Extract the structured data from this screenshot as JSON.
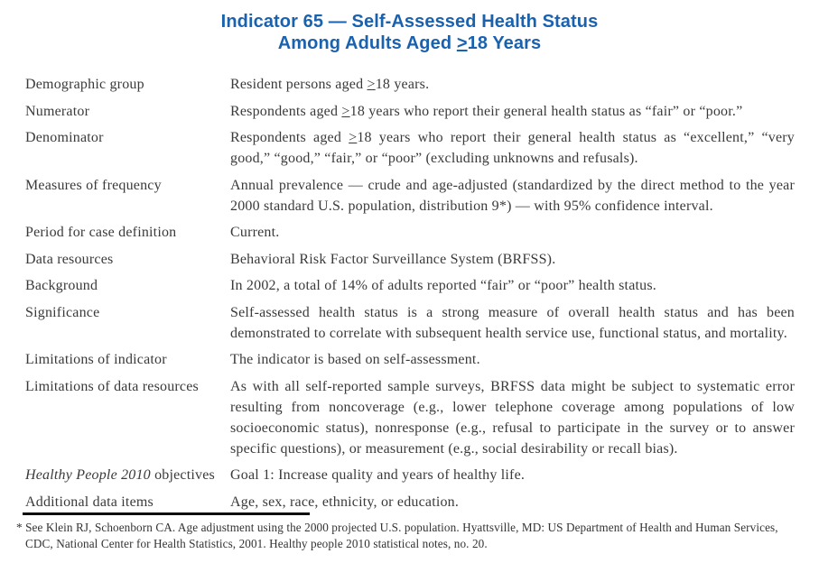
{
  "colors": {
    "title_blue": "#1b62ae",
    "body_text": "#3a3a3a",
    "rule_black": "#0d0d0d"
  },
  "title": {
    "line1": [
      {
        "t": "Indicator 65 — Self-Assessed Health Status"
      }
    ],
    "line2": [
      {
        "t": "Among Adults Aged "
      },
      {
        "t": ">",
        "u": true
      },
      {
        "t": "18 Years"
      }
    ]
  },
  "table": {
    "rows": [
      {
        "label": [
          {
            "t": "Demographic group"
          }
        ],
        "value": [
          {
            "t": "Resident persons aged "
          },
          {
            "t": ">",
            "u": true
          },
          {
            "t": "18 years."
          }
        ]
      },
      {
        "label": [
          {
            "t": "Numerator"
          }
        ],
        "value": [
          {
            "t": "Respondents aged "
          },
          {
            "t": ">",
            "u": true
          },
          {
            "t": "18 years who report their general health status as “fair” or “poor.”"
          }
        ]
      },
      {
        "label": [
          {
            "t": "Denominator"
          }
        ],
        "value": [
          {
            "t": "Respondents aged "
          },
          {
            "t": ">",
            "u": true
          },
          {
            "t": "18 years who report their general health status as “excellent,” “very good,” “good,” “fair,” or “poor” (excluding unknowns and refusals)."
          }
        ]
      },
      {
        "label": [
          {
            "t": "Measures of frequency"
          }
        ],
        "value": [
          {
            "t": "Annual prevalence — crude and age-adjusted (standardized by the direct method to the year 2000 standard U.S. population, distribution 9*) — with 95% confidence interval."
          }
        ]
      },
      {
        "label": [
          {
            "t": "Period for case definition"
          }
        ],
        "value": [
          {
            "t": "Current."
          }
        ]
      },
      {
        "label": [
          {
            "t": "Data resources"
          }
        ],
        "value": [
          {
            "t": "Behavioral Risk Factor Surveillance System (BRFSS)."
          }
        ]
      },
      {
        "label": [
          {
            "t": "Background"
          }
        ],
        "value": [
          {
            "t": "In 2002, a total of 14% of adults reported “fair” or “poor” health status."
          }
        ]
      },
      {
        "label": [
          {
            "t": "Significance"
          }
        ],
        "value": [
          {
            "t": "Self-assessed health status is a strong measure of overall health status and has been demonstrated to correlate with subsequent health service use, functional status, and mortality."
          }
        ]
      },
      {
        "label": [
          {
            "t": "Limitations of indicator"
          }
        ],
        "value": [
          {
            "t": "The indicator is based on self-assessment."
          }
        ]
      },
      {
        "label": [
          {
            "t": "Limitations of data resources"
          }
        ],
        "value": [
          {
            "t": "As with all self-reported sample surveys, BRFSS data might be subject to systematic error resulting from noncoverage (e.g., lower telephone coverage among populations of low socioeconomic status), nonresponse (e.g., refusal to participate in the survey or to answer specific questions), or measurement (e.g., social desirability or recall bias)."
          }
        ]
      },
      {
        "label": [
          {
            "t": "Healthy People 2010",
            "i": true
          },
          {
            "t": " objectives"
          }
        ],
        "value": [
          {
            "t": "Goal 1: Increase quality and years of healthy life."
          }
        ]
      },
      {
        "label": [
          {
            "t": "Additional data items"
          }
        ],
        "value": [
          {
            "t": "Age, sex, race, ethnicity, or education."
          }
        ]
      }
    ]
  },
  "footnote": {
    "text": "* See Klein RJ, Schoenborn CA. Age adjustment using the 2000 projected U.S. population. Hyattsville, MD: US Department of Health and Human Services, CDC, National Center for Health Statistics, 2001. Healthy people 2010 statistical notes, no. 20."
  }
}
